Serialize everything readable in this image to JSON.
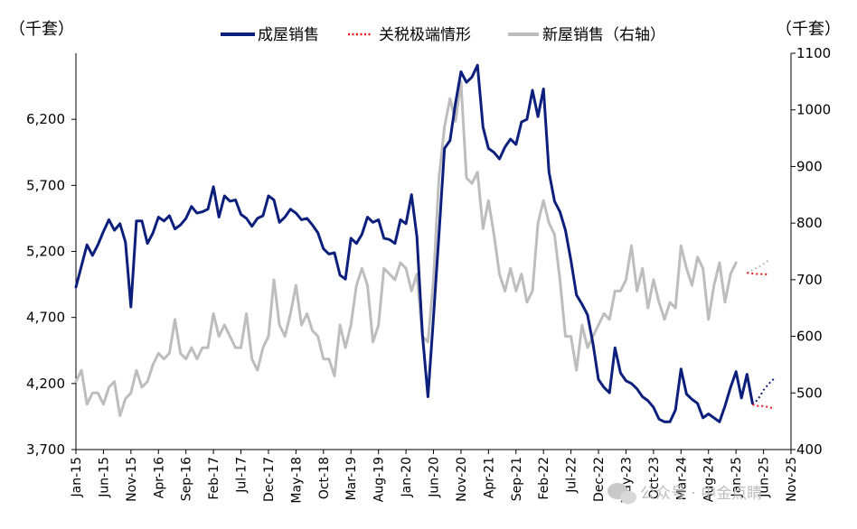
{
  "chart_data": {
    "type": "line",
    "y_left_label": "（千套）",
    "y_right_label": "（千套）",
    "y_left_ticks": [
      "3,700",
      "4,200",
      "4,700",
      "5,200",
      "5,700",
      "6,200"
    ],
    "y_left_tick_values": [
      3700,
      4200,
      4700,
      5200,
      5700,
      6200
    ],
    "y_left_range": [
      3700,
      6700
    ],
    "y_right_ticks": [
      "400",
      "500",
      "600",
      "700",
      "800",
      "900",
      "1000",
      "1100"
    ],
    "y_right_tick_values": [
      400,
      500,
      600,
      700,
      800,
      900,
      1000,
      1100
    ],
    "y_right_range": [
      400,
      1100
    ],
    "x_range": [
      0,
      130
    ],
    "x_ticks": [
      {
        "label": "Jan-15",
        "i": 0
      },
      {
        "label": "Jun-15",
        "i": 5
      },
      {
        "label": "Nov-15",
        "i": 10
      },
      {
        "label": "Apr-16",
        "i": 15
      },
      {
        "label": "Sep-16",
        "i": 20
      },
      {
        "label": "Feb-17",
        "i": 25
      },
      {
        "label": "Jul-17",
        "i": 30
      },
      {
        "label": "Dec-17",
        "i": 35
      },
      {
        "label": "May-18",
        "i": 40
      },
      {
        "label": "Oct-18",
        "i": 45
      },
      {
        "label": "Mar-19",
        "i": 50
      },
      {
        "label": "Aug-19",
        "i": 55
      },
      {
        "label": "Jan-20",
        "i": 60
      },
      {
        "label": "Jun-20",
        "i": 65
      },
      {
        "label": "Nov-20",
        "i": 70
      },
      {
        "label": "Apr-21",
        "i": 75
      },
      {
        "label": "Sep-21",
        "i": 80
      },
      {
        "label": "Feb-22",
        "i": 85
      },
      {
        "label": "Jul-22",
        "i": 90
      },
      {
        "label": "Dec-22",
        "i": 95
      },
      {
        "label": "May-23",
        "i": 100
      },
      {
        "label": "Oct-23",
        "i": 105
      },
      {
        "label": "Mar-24",
        "i": 110
      },
      {
        "label": "Aug-24",
        "i": 115
      },
      {
        "label": "Jan-25",
        "i": 120
      },
      {
        "label": "Jun-25",
        "i": 125
      },
      {
        "label": "Nov-25",
        "i": 130
      }
    ],
    "legend": [
      "成屋销售",
      "关税极端情形",
      "新屋销售（右轴）"
    ],
    "colors": {
      "existing": "#0d1f7c",
      "tariff": "#e8141b",
      "new": "#bdbdbd"
    },
    "series": [
      {
        "name": "成屋销售",
        "axis": "left",
        "style": "solid",
        "x_start": 0,
        "values": [
          4930,
          5090,
          5250,
          5170,
          5250,
          5350,
          5440,
          5360,
          5410,
          5270,
          4780,
          5430,
          5430,
          5260,
          5340,
          5460,
          5430,
          5470,
          5370,
          5400,
          5450,
          5540,
          5490,
          5500,
          5520,
          5690,
          5460,
          5620,
          5580,
          5590,
          5480,
          5450,
          5390,
          5450,
          5470,
          5620,
          5590,
          5420,
          5460,
          5520,
          5490,
          5440,
          5450,
          5400,
          5340,
          5220,
          5180,
          5190,
          5020,
          4990,
          5300,
          5260,
          5330,
          5460,
          5420,
          5440,
          5300,
          5290,
          5260,
          5440,
          5410,
          5630,
          5310,
          4570,
          4100,
          4700,
          5330,
          5980,
          6040,
          6320,
          6560,
          6480,
          6520,
          6610,
          6140,
          5980,
          5950,
          5900,
          5990,
          6050,
          6010,
          6180,
          6200,
          6420,
          6220,
          6430,
          5800,
          5580,
          5500,
          5360,
          5130,
          4870,
          4800,
          4720,
          4500,
          4230,
          4170,
          4130,
          4470,
          4280,
          4220,
          4200,
          4160,
          4100,
          4070,
          4020,
          3930,
          3910,
          3910,
          4000,
          4310,
          4120,
          4080,
          4050,
          3940,
          3970,
          3940,
          3910,
          4030,
          4170,
          4290,
          4090,
          4270,
          4050
        ]
      },
      {
        "name": "新屋销售（右轴）",
        "axis": "right",
        "style": "solid",
        "x_start": 0,
        "values": [
          520,
          540,
          480,
          500,
          500,
          480,
          510,
          520,
          460,
          490,
          500,
          540,
          510,
          520,
          550,
          570,
          560,
          570,
          630,
          570,
          560,
          580,
          560,
          580,
          580,
          640,
          600,
          620,
          600,
          580,
          580,
          640,
          560,
          540,
          580,
          600,
          700,
          620,
          600,
          640,
          690,
          620,
          640,
          610,
          600,
          560,
          560,
          530,
          620,
          580,
          620,
          690,
          720,
          690,
          590,
          620,
          720,
          710,
          700,
          730,
          720,
          680,
          710,
          600,
          590,
          700,
          880,
          970,
          1020,
          980,
          1050,
          880,
          870,
          890,
          790,
          840,
          780,
          710,
          680,
          720,
          680,
          710,
          660,
          680,
          800,
          840,
          800,
          780,
          700,
          600,
          600,
          540,
          620,
          580,
          600,
          620,
          640,
          630,
          680,
          680,
          700,
          760,
          680,
          720,
          650,
          700,
          660,
          630,
          660,
          650,
          760,
          720,
          690,
          740,
          720,
          630,
          690,
          730,
          660,
          710,
          730
        ]
      },
      {
        "name": "关税极端情形",
        "axis": "left",
        "style": "dotted",
        "x_start": 123,
        "values": [
          4040,
          4080,
          4150,
          4200,
          4240
        ]
      },
      {
        "name": "关税极端情形",
        "axis": "left",
        "style": "dotted",
        "x_start": 123,
        "values": [
          4040,
          4030,
          4030,
          4020,
          4010
        ]
      },
      {
        "name": "关税极端情形",
        "axis": "right",
        "style": "dotted",
        "x_start": 122,
        "values": [
          712,
          717,
          722,
          728,
          735
        ]
      },
      {
        "name": "关税极端情形",
        "axis": "right",
        "style": "dotted",
        "x_start": 122,
        "values": [
          712,
          711,
          710,
          710,
          709
        ]
      }
    ]
  },
  "watermark": "公众号 · 中金点睛"
}
